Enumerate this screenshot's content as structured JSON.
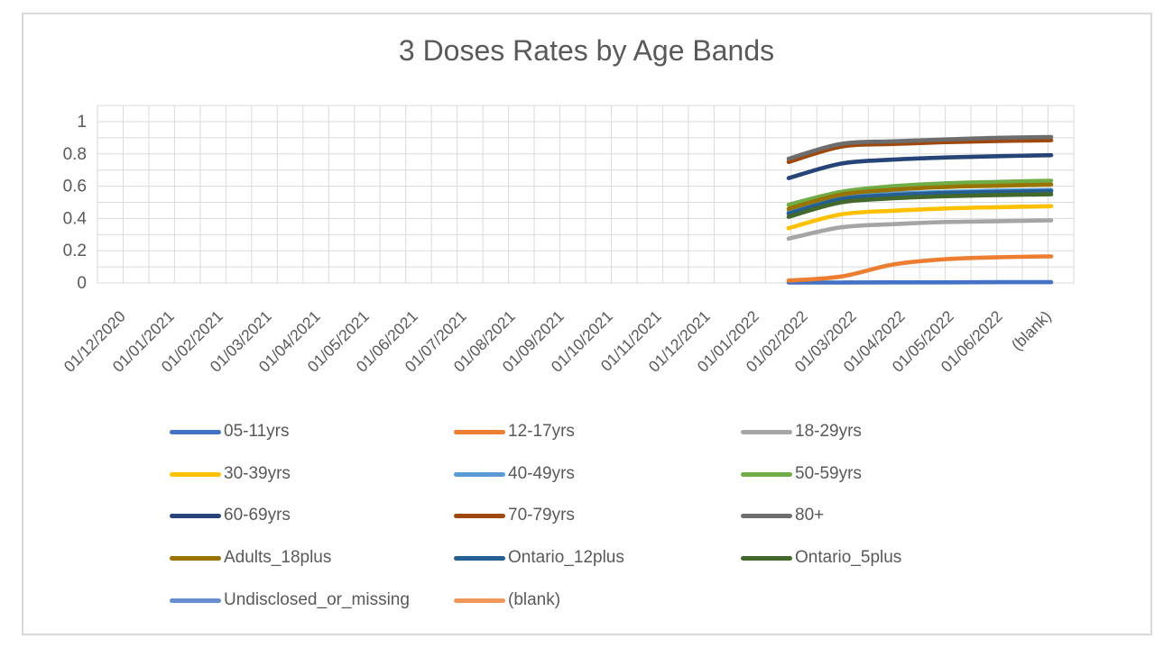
{
  "chart": {
    "title": "3 Doses Rates by Age Bands"
  },
  "colors": {
    "text": "#595959",
    "gridline": "#DADADA",
    "frame_border": "#D9D9D9",
    "background": "#FFFFFF"
  },
  "chart_data": {
    "type": "line",
    "title": "3 Doses Rates by Age Bands",
    "grid": "both",
    "legend_position": "bottom",
    "ylim": [
      0,
      1.1
    ],
    "y_ticks": [
      "0",
      "0.2",
      "0.4",
      "0.6",
      "0.8",
      "1"
    ],
    "x_categories": [
      "01/12/2020",
      "01/01/2021",
      "01/02/2021",
      "01/03/2021",
      "01/04/2021",
      "01/05/2021",
      "01/06/2021",
      "01/07/2021",
      "01/08/2021",
      "01/09/2021",
      "01/10/2021",
      "01/11/2021",
      "01/12/2021",
      "01/01/2022",
      "01/02/2022",
      "01/03/2022",
      "01/04/2022",
      "01/05/2022",
      "01/06/2022",
      "(blank)"
    ],
    "data_x": [
      "01/01/2022",
      "01/02/2022",
      "01/03/2022",
      "01/04/2022",
      "01/05/2022",
      "01/06/2022"
    ],
    "series": [
      {
        "name": "05-11yrs",
        "color": "#4472C4",
        "values": [
          0.003,
          0.003,
          0.004,
          0.004,
          0.005,
          0.005
        ]
      },
      {
        "name": "12-17yrs",
        "color": "#ED7D31",
        "values": [
          0.015,
          0.04,
          0.115,
          0.148,
          0.16,
          0.165
        ]
      },
      {
        "name": "18-29yrs",
        "color": "#A5A5A5",
        "values": [
          0.275,
          0.345,
          0.365,
          0.378,
          0.383,
          0.388
        ]
      },
      {
        "name": "30-39yrs",
        "color": "#FFC000",
        "values": [
          0.34,
          0.425,
          0.448,
          0.462,
          0.47,
          0.476
        ]
      },
      {
        "name": "40-49yrs",
        "color": "#5B9BD5",
        "values": [
          0.44,
          0.53,
          0.553,
          0.565,
          0.572,
          0.577
        ]
      },
      {
        "name": "50-59yrs",
        "color": "#70AD47",
        "values": [
          0.485,
          0.565,
          0.6,
          0.618,
          0.627,
          0.634
        ]
      },
      {
        "name": "60-69yrs",
        "color": "#264478",
        "values": [
          0.65,
          0.74,
          0.765,
          0.778,
          0.786,
          0.792
        ]
      },
      {
        "name": "70-79yrs",
        "color": "#9E480E",
        "values": [
          0.75,
          0.845,
          0.862,
          0.873,
          0.88,
          0.885
        ]
      },
      {
        "name": "80+",
        "color": "#6D6D6D",
        "values": [
          0.77,
          0.862,
          0.878,
          0.89,
          0.9,
          0.905
        ]
      },
      {
        "name": "Adults_18plus",
        "color": "#997300",
        "values": [
          0.46,
          0.548,
          0.578,
          0.595,
          0.603,
          0.61
        ]
      },
      {
        "name": "Ontario_12plus",
        "color": "#255E91",
        "values": [
          0.43,
          0.52,
          0.545,
          0.558,
          0.565,
          0.57
        ]
      },
      {
        "name": "Ontario_5plus",
        "color": "#43682B",
        "values": [
          0.41,
          0.5,
          0.525,
          0.538,
          0.545,
          0.55
        ]
      },
      {
        "name": "Undisclosed_or_missing",
        "color": "#698ED0",
        "values": []
      },
      {
        "name": "(blank)",
        "color": "#F1975A",
        "values": []
      }
    ]
  }
}
